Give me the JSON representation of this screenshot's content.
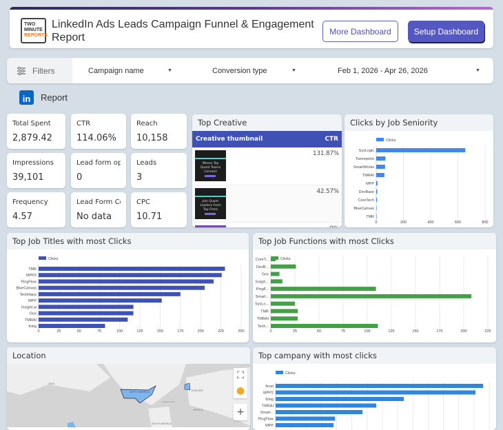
{
  "header": {
    "logo_text": [
      "TWO",
      "MINUTE",
      "REPORTS"
    ],
    "title": "LinkedIn Ads Leads Campaign Funnel & Engagement Report",
    "more_label": "More Dashboard",
    "setup_label": "Setup Dashboard",
    "gradient": [
      "#2d2b5a",
      "#b36bd1"
    ]
  },
  "filters": {
    "label": "Filters",
    "campaign": "Campaign name",
    "conversion": "Conversion type",
    "date": "Feb 1, 2026 - Apr 26, 2026"
  },
  "section": {
    "label": "Report",
    "icon": "linkedin-icon"
  },
  "kpis": [
    {
      "label": "Total Spent",
      "value": "2,879.42"
    },
    {
      "label": "CTR",
      "value": "114.06%"
    },
    {
      "label": "Reach",
      "value": "10,158"
    },
    {
      "label": "Impressions",
      "value": "39,101"
    },
    {
      "label": "Lead form op...",
      "value": "0"
    },
    {
      "label": "Leads",
      "value": "3"
    },
    {
      "label": "Frequency",
      "value": "4.57"
    },
    {
      "label": "Lead Form Co...",
      "value": "No data"
    },
    {
      "label": "CPC",
      "value": "10.71"
    }
  ],
  "top_creative": {
    "title": "Top Creative",
    "col1": "Creative thumbnail",
    "col2": "CTR",
    "rows": [
      {
        "thumb_text": "Where Top Quant Teams Connect",
        "ctr": "131.87%"
      },
      {
        "thumb_text": "Join Quant Leaders From Top Firms",
        "ctr": "42.57%"
      },
      {
        "thumb_text": "",
        "ctr": "0%"
      }
    ]
  },
  "location": {
    "title": "Location",
    "labels": {
      "asia": "ASIA",
      "europe": "EUROPE",
      "na": "NORTH AMERICA",
      "africa": "AFRICA",
      "sa": "SOUTH AMERICA",
      "ocean": "Atlantic Ocean"
    }
  },
  "chart_data": [
    {
      "id": "seniority",
      "type": "bar",
      "orientation": "horizontal",
      "title": "Clicks by Job Seniority",
      "legend": "Clicks",
      "color": "#4285f4",
      "xlim": [
        0,
        800
      ],
      "ticks": [
        0,
        200,
        400,
        600,
        800
      ],
      "grid": true,
      "categories": [
        "SysLogic",
        "Tworeports",
        "SmartWorks",
        "TMRAI",
        "MPP",
        "DevBase",
        "CoreTech",
        "BlueCanvas",
        "TMR"
      ],
      "values": [
        655,
        68,
        65,
        60,
        10,
        8,
        6,
        2,
        2
      ]
    },
    {
      "id": "titles",
      "type": "bar",
      "orientation": "horizontal",
      "title": "Top Job Titles with most Clicks",
      "legend": "Clicks",
      "color": "#3f51b5",
      "xlim": [
        0,
        250
      ],
      "ticks": [
        0,
        25,
        50,
        75,
        100,
        125,
        150,
        175,
        200,
        225,
        250
      ],
      "grid": true,
      "categories": [
        "TMR",
        "MPP2",
        "PingFlow",
        "BlueCanvas",
        "TechHaus",
        "MPP",
        "Insight.ai",
        "Gox",
        "TMRAI",
        "fxlog"
      ],
      "values": [
        230,
        226,
        216,
        205,
        175,
        152,
        117,
        117,
        110,
        82
      ]
    },
    {
      "id": "functions",
      "type": "bar",
      "orientation": "horizontal",
      "title": "Top Job Functions with most Clicks",
      "legend": "Clicks",
      "color": "#43a047",
      "xlim": [
        0,
        225
      ],
      "ticks": [
        0,
        25,
        50,
        75,
        100,
        125,
        150,
        175,
        200,
        225
      ],
      "grid": true,
      "categories": [
        "CoreT...",
        "DevB...",
        "Gox",
        "Insigh...",
        "PingF...",
        "Smart...",
        "SysLo...",
        "TMR",
        "TMRAI",
        "Tech..."
      ],
      "values": [
        5,
        26,
        9,
        12,
        109,
        208,
        25,
        28,
        28,
        111
      ]
    },
    {
      "id": "company",
      "type": "bar",
      "orientation": "horizontal",
      "title": "Top campany with most clicks",
      "legend": "Clicks",
      "color": "#2e86de",
      "xlim": [
        0,
        14
      ],
      "ticks": [],
      "grid": true,
      "categories": [
        "fxcat",
        "MPP2",
        "fxlog",
        "TMRAI",
        "Smart...",
        "PingFlow",
        "MPP"
      ],
      "values": [
        13.6,
        13.1,
        8.4,
        6.6,
        5.7,
        3.9,
        3.8
      ]
    }
  ]
}
